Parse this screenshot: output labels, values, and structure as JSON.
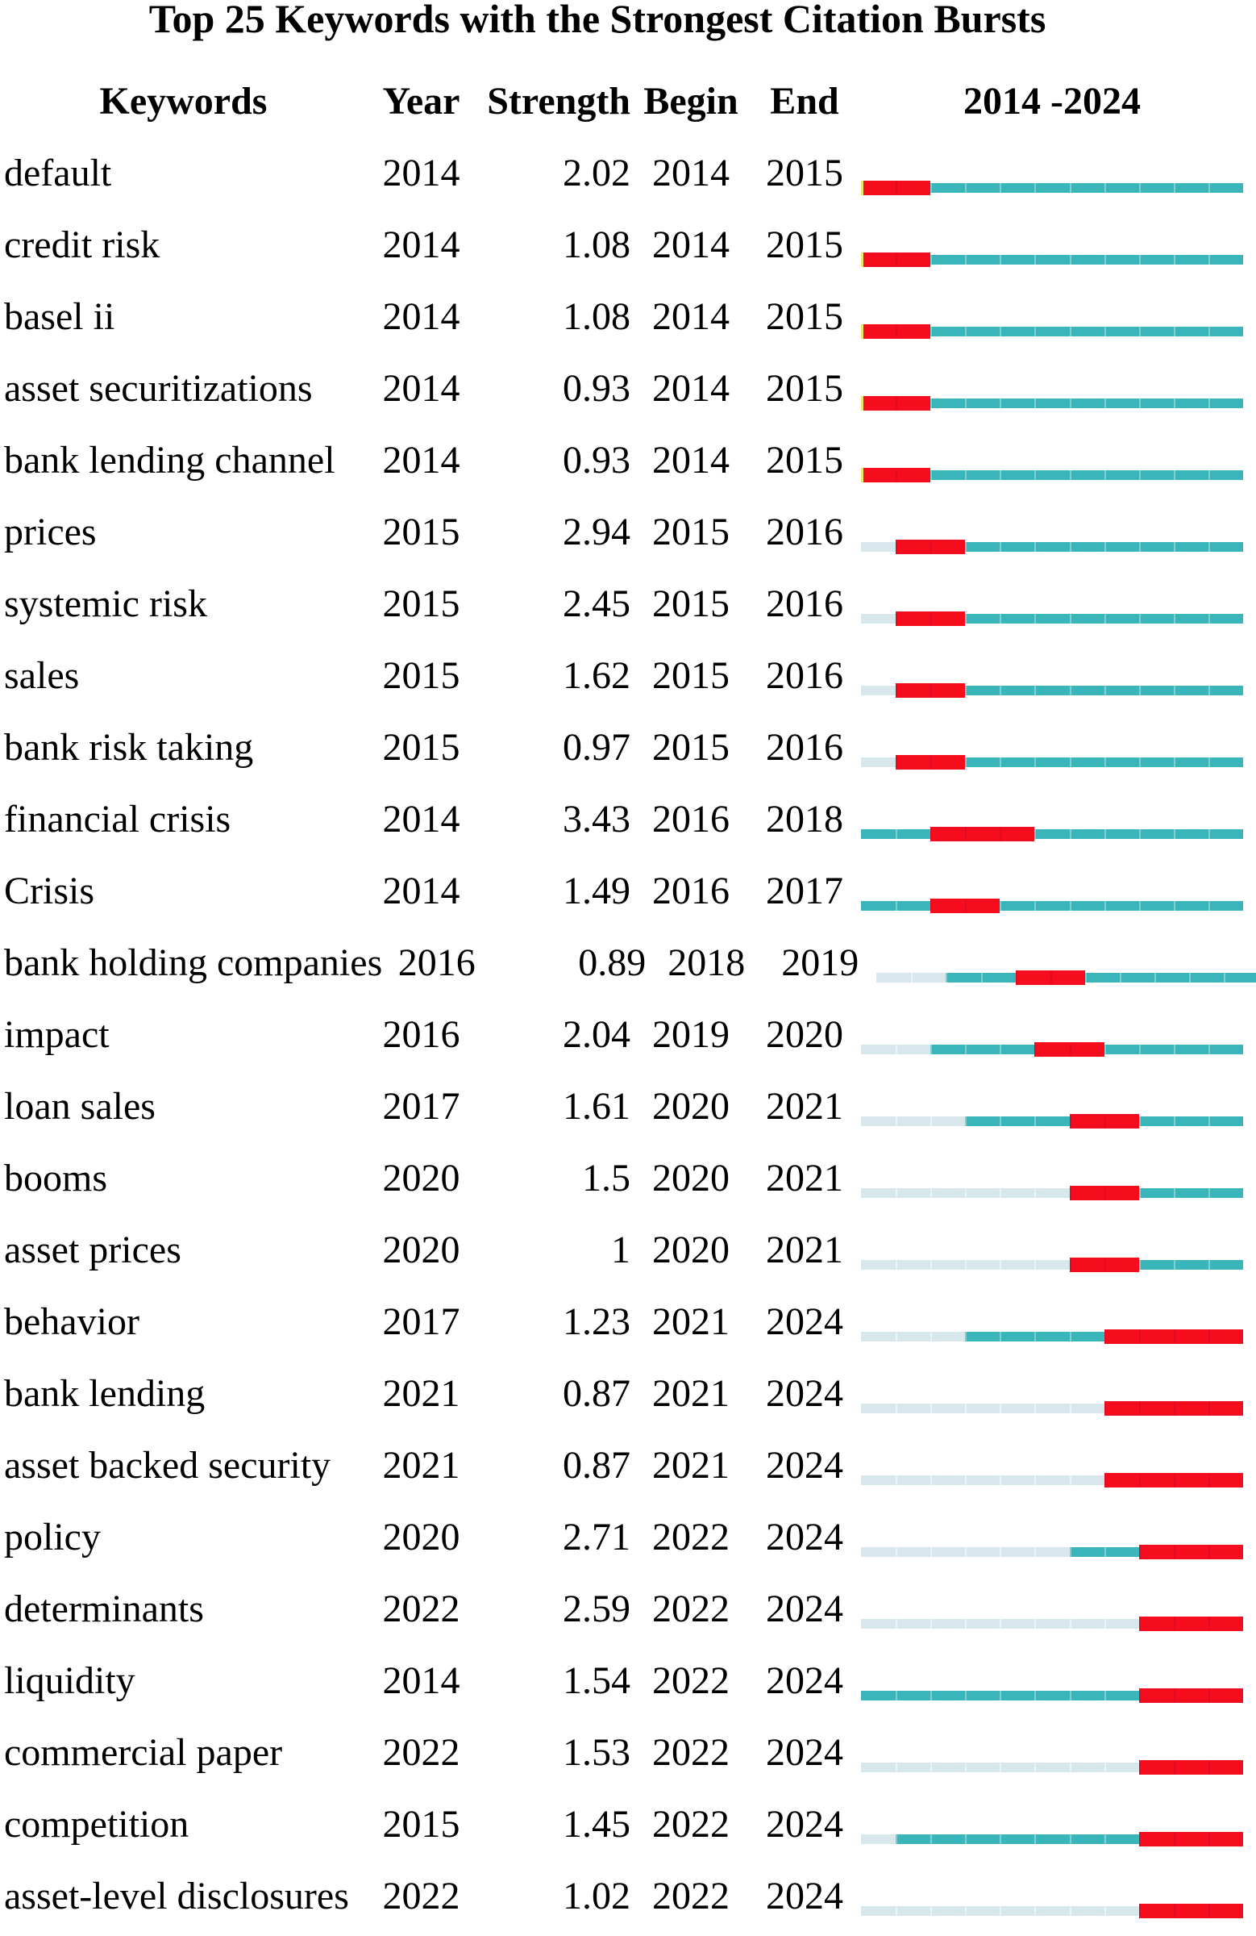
{
  "title": "Top 25 Keywords with the Strongest Citation Bursts",
  "columns": {
    "keywords": "Keywords",
    "year": "Year",
    "strength": "Strength",
    "begin": "Begin",
    "end": "End",
    "range": "2014 -2024"
  },
  "chart_data": {
    "type": "table",
    "subtype": "citation-burst-timeline",
    "title": "Top 25 Keywords with the Strongest Citation Bursts",
    "column_headers": [
      "Keywords",
      "Year",
      "Strength",
      "Begin",
      "End",
      "2014 -2024"
    ],
    "year_range": [
      2014,
      2024
    ],
    "legend": {
      "burst_color_meaning": "burst period (Begin–End)",
      "active_color_meaning": "years after first appearance",
      "inactive_color_meaning": "years before first appearance"
    },
    "colors": {
      "burst": "#f60d1d",
      "active": "#3ab6ba",
      "inactive": "#d8e7ec",
      "burst_edge": "#e9e76a"
    },
    "rows": [
      {
        "keyword": "default",
        "year": 2014,
        "strength": "2.02",
        "begin": 2014,
        "end": 2015
      },
      {
        "keyword": "credit risk",
        "year": 2014,
        "strength": "1.08",
        "begin": 2014,
        "end": 2015
      },
      {
        "keyword": "basel ii",
        "year": 2014,
        "strength": "1.08",
        "begin": 2014,
        "end": 2015
      },
      {
        "keyword": "asset securitizations",
        "year": 2014,
        "strength": "0.93",
        "begin": 2014,
        "end": 2015
      },
      {
        "keyword": "bank lending channel",
        "year": 2014,
        "strength": "0.93",
        "begin": 2014,
        "end": 2015
      },
      {
        "keyword": "prices",
        "year": 2015,
        "strength": "2.94",
        "begin": 2015,
        "end": 2016
      },
      {
        "keyword": "systemic risk",
        "year": 2015,
        "strength": "2.45",
        "begin": 2015,
        "end": 2016
      },
      {
        "keyword": "sales",
        "year": 2015,
        "strength": "1.62",
        "begin": 2015,
        "end": 2016
      },
      {
        "keyword": "bank risk taking",
        "year": 2015,
        "strength": "0.97",
        "begin": 2015,
        "end": 2016
      },
      {
        "keyword": "financial crisis",
        "year": 2014,
        "strength": "3.43",
        "begin": 2016,
        "end": 2018
      },
      {
        "keyword": "Crisis",
        "year": 2014,
        "strength": "1.49",
        "begin": 2016,
        "end": 2017
      },
      {
        "keyword": "bank holding companies",
        "year": 2016,
        "strength": "0.89",
        "begin": 2018,
        "end": 2019
      },
      {
        "keyword": "impact",
        "year": 2016,
        "strength": "2.04",
        "begin": 2019,
        "end": 2020
      },
      {
        "keyword": "loan sales",
        "year": 2017,
        "strength": "1.61",
        "begin": 2020,
        "end": 2021
      },
      {
        "keyword": "booms",
        "year": 2020,
        "strength": "1.5",
        "begin": 2020,
        "end": 2021
      },
      {
        "keyword": "asset prices",
        "year": 2020,
        "strength": "1",
        "begin": 2020,
        "end": 2021
      },
      {
        "keyword": "behavior",
        "year": 2017,
        "strength": "1.23",
        "begin": 2021,
        "end": 2024
      },
      {
        "keyword": "bank lending",
        "year": 2021,
        "strength": "0.87",
        "begin": 2021,
        "end": 2024
      },
      {
        "keyword": "asset backed security",
        "year": 2021,
        "strength": "0.87",
        "begin": 2021,
        "end": 2024
      },
      {
        "keyword": "policy",
        "year": 2020,
        "strength": "2.71",
        "begin": 2022,
        "end": 2024
      },
      {
        "keyword": "determinants",
        "year": 2022,
        "strength": "2.59",
        "begin": 2022,
        "end": 2024
      },
      {
        "keyword": "liquidity",
        "year": 2014,
        "strength": "1.54",
        "begin": 2022,
        "end": 2024
      },
      {
        "keyword": "commercial paper",
        "year": 2022,
        "strength": "1.53",
        "begin": 2022,
        "end": 2024
      },
      {
        "keyword": "competition",
        "year": 2015,
        "strength": "1.45",
        "begin": 2022,
        "end": 2024
      },
      {
        "keyword": "asset-level disclosures",
        "year": 2022,
        "strength": "1.02",
        "begin": 2022,
        "end": 2024
      }
    ]
  }
}
